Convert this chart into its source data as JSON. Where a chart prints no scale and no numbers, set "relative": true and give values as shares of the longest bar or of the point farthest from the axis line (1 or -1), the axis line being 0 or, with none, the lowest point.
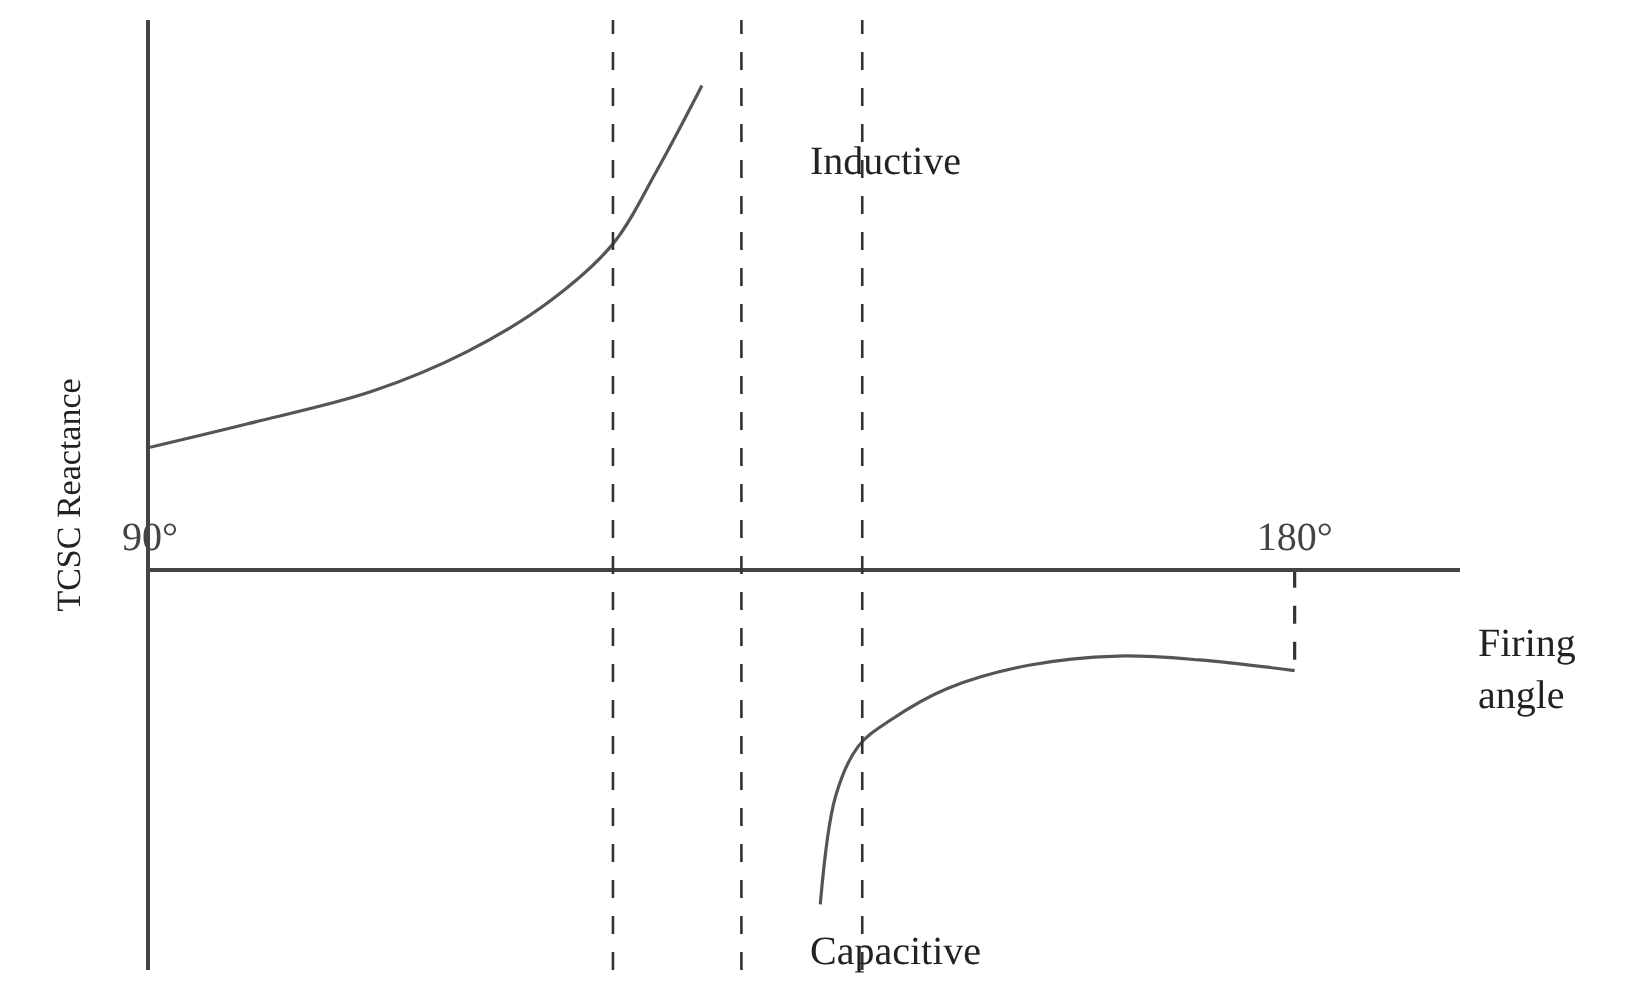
{
  "chart_data": {
    "type": "line",
    "relative": true,
    "xlabel": "Firing angle",
    "ylabel": "TCSC Reactance",
    "xlim": [
      90,
      193
    ],
    "xticks": [
      {
        "value": 90,
        "label": "90°"
      },
      {
        "value": 180,
        "label": "180°"
      }
    ],
    "series": [
      {
        "color": "#555555",
        "x": [
          90,
          97.6,
          107.4,
          114.9,
          121.4,
          126.4,
          129.8,
          133.4
        ],
        "values": [
          0.253,
          0.301,
          0.368,
          0.45,
          0.554,
          0.673,
          0.822,
          1
        ]
      },
      {
        "color": "#555555",
        "x": [
          142.7,
          143.9,
          145.7,
          148.3,
          152.7,
          159.1,
          166.1,
          172.5,
          180
        ],
        "values": [
          -0.691,
          -0.468,
          -0.364,
          -0.309,
          -0.245,
          -0.197,
          -0.178,
          -0.186,
          -0.208
        ]
      },
      {
        "color": "#333333",
        "line_style": "dashed",
        "x": [
          180,
          180
        ],
        "values": [
          0,
          -0.208
        ]
      }
    ],
    "ref_lines": [
      {
        "axis": "x",
        "value": 126.4,
        "line_style": "dashed",
        "color": "#333333"
      },
      {
        "axis": "x",
        "value": 136.5,
        "line_style": "dashed",
        "color": "#333333"
      },
      {
        "axis": "x",
        "value": 146.0,
        "line_style": "dashed",
        "color": "#333333"
      }
    ],
    "annotations": [
      "Inductive",
      "Capacitive"
    ],
    "marker": "none",
    "line_style": "solid"
  }
}
